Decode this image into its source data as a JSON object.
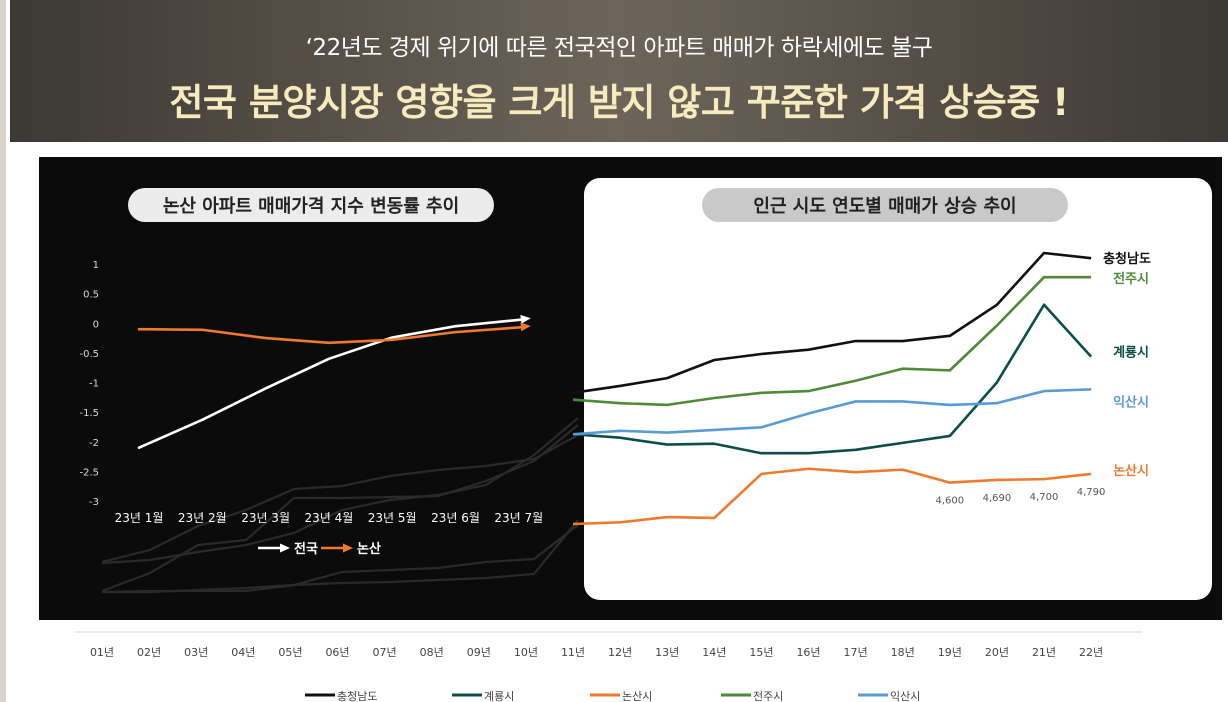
{
  "header": {
    "subtitle": "‘22년도 경제 위기에 따른 전국적인 아파트 매매가 하락세에도 불구",
    "title": "전국 분양시장 영향을 크게 받지 않고 꾸준한 가격 상승중 !"
  },
  "chart_data": [
    {
      "type": "line",
      "title": "논산 아파트 매매가격 지수 변동률 추이",
      "categories": [
        "23년 1월",
        "23년 2월",
        "23년 3월",
        "23년 4월",
        "23년 5월",
        "23년 6월",
        "23년 7월"
      ],
      "yticks": [
        "1",
        "0.5",
        "0",
        "-0.5",
        "-1",
        "-1.5",
        "-2",
        "-2.5",
        "-3"
      ],
      "ylim": [
        -3,
        1
      ],
      "series": [
        {
          "name": "전국",
          "color": "#ffffff",
          "values": [
            -2.1,
            -1.63,
            -1.1,
            -0.6,
            -0.24,
            -0.05,
            0.05
          ]
        },
        {
          "name": "논산",
          "color": "#ef7a2e",
          "values": [
            -0.1,
            -0.11,
            -0.25,
            -0.33,
            -0.28,
            -0.15,
            -0.08
          ]
        }
      ],
      "legend": [
        {
          "label": "전국",
          "color": "#ffffff"
        },
        {
          "label": "논산",
          "color": "#ef7a2e"
        }
      ]
    },
    {
      "type": "line",
      "title": "인근 시도 연도별 매매가 상승 추이",
      "categories": [
        "01년",
        "02년",
        "03년",
        "04년",
        "05년",
        "06년",
        "07년",
        "08년",
        "09년",
        "10년",
        "11년",
        "12년",
        "13년",
        "14년",
        "15년",
        "16년",
        "17년",
        "18년",
        "19년",
        "20년",
        "21년",
        "22년"
      ],
      "visible_from_index": 10,
      "series": [
        {
          "name": "충청남도",
          "color": "#111111",
          "values": [
            null,
            null,
            null,
            null,
            null,
            null,
            null,
            null,
            null,
            null,
            2390,
            2430,
            2475,
            2580,
            2615,
            2640,
            2690,
            2690,
            2720,
            2900,
            3200,
            3170
          ]
        },
        {
          "name": "계룡시",
          "color": "#0c4f4a",
          "values": [
            null,
            null,
            null,
            null,
            null,
            null,
            null,
            null,
            null,
            null,
            2150,
            2130,
            2090,
            2095,
            2040,
            2040,
            2060,
            2100,
            2140,
            2450,
            2900,
            2600
          ]
        },
        {
          "name": "논산시",
          "color": "#ef7a2e",
          "values": [
            null,
            null,
            null,
            null,
            null,
            null,
            null,
            null,
            null,
            null,
            1630,
            1640,
            1670,
            1665,
            1920,
            1950,
            1930,
            1945,
            1870,
            1885,
            1890,
            1920
          ]
        },
        {
          "name": "전주시",
          "color": "#4e8a38",
          "values": [
            null,
            null,
            null,
            null,
            null,
            null,
            null,
            null,
            null,
            null,
            2350,
            2330,
            2320,
            2360,
            2390,
            2400,
            2460,
            2530,
            2520,
            2780,
            3060,
            3060
          ]
        },
        {
          "name": "익산시",
          "color": "#5b9bd5",
          "values": [
            null,
            null,
            null,
            null,
            null,
            null,
            null,
            null,
            null,
            null,
            2150,
            2170,
            2160,
            2175,
            2190,
            2270,
            2340,
            2340,
            2320,
            2330,
            2400,
            2410
          ]
        }
      ],
      "point_labels": [
        "4,600",
        "4,690",
        "4,700",
        "4,790"
      ],
      "series_labels": [
        "충청남도",
        "전주시",
        "계룡시",
        "익산시",
        "논산시"
      ]
    }
  ],
  "bottom_legend": [
    "충청남도",
    "계룡시",
    "논산시",
    "전주시",
    "익산시"
  ]
}
